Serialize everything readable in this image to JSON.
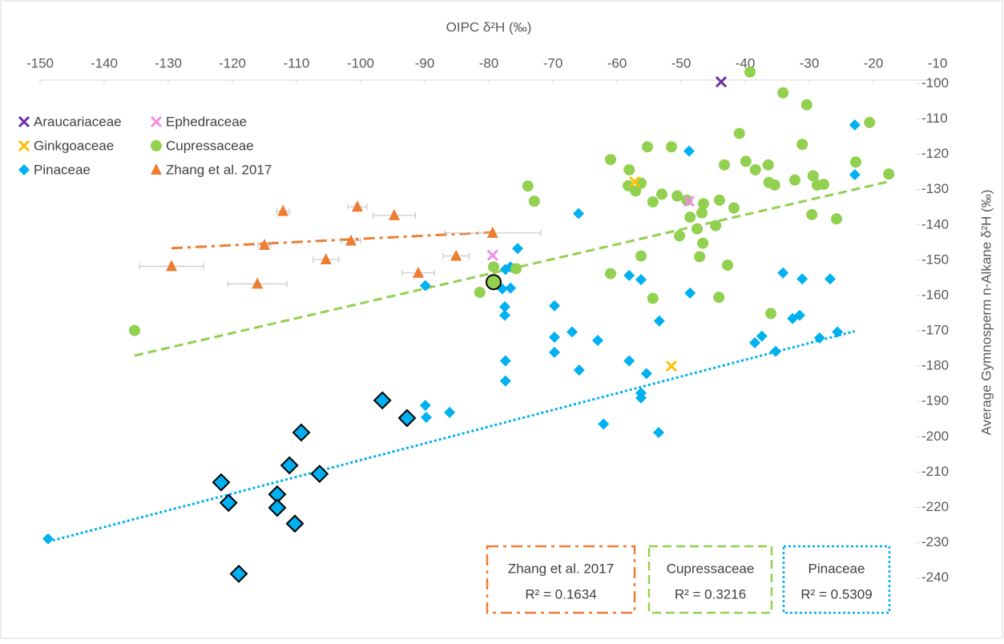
{
  "chart_data": {
    "type": "scatter",
    "x_label": "OIPC δ²H (‰)",
    "y_label": "Average Gymnosperm n-Alkane δ²H (‰)",
    "xlim": [
      -150,
      -10
    ],
    "ylim": [
      -255.5,
      -99
    ],
    "xticks": [
      -150,
      -140,
      -130,
      -120,
      -110,
      -100,
      -90,
      -80,
      -70,
      -60,
      -50,
      -40,
      -30,
      -20,
      -10
    ],
    "yticks": [
      -100,
      -110,
      -120,
      -130,
      -140,
      -150,
      -160,
      -170,
      -180,
      -190,
      -200,
      -210,
      -220,
      -230,
      -240
    ],
    "legend": "top-left",
    "series": [
      {
        "name": "Araucariaceae",
        "color": "#7030a0",
        "marker": "x",
        "x": [
          -43.75
        ],
        "y": [
          -99.5
        ]
      },
      {
        "name": "Ephedraceae",
        "color": "#f28ce6",
        "marker": "x",
        "x": [
          -48.75,
          -79.4
        ],
        "y": [
          -133.3,
          -148.6
        ]
      },
      {
        "name": "Ginkgoaceae",
        "color": "#ffc000",
        "marker": "x",
        "x": [
          -57.25,
          -51.5
        ],
        "y": [
          -127.8,
          -180.0
        ]
      },
      {
        "name": "Cupressaceae",
        "color": "#92d050",
        "marker": "circle",
        "x": [
          -135.25,
          -39.25,
          -34.1,
          -30.4,
          -40.9,
          -31.1,
          -20.6,
          -17.6,
          -22.75,
          -39.9,
          -38.4,
          -36.4,
          -55.25,
          -51.5,
          -61,
          -73.9,
          -72.9,
          -58.1,
          -56.25,
          -58.25,
          -57.1,
          -53,
          -54.4,
          -50.6,
          -49.1,
          -46.5,
          -44,
          -43.25,
          -36.3,
          -41.75,
          -46.75,
          -48.6,
          -47.5,
          -50.25,
          -46.6,
          -44.6,
          -35.4,
          -32.25,
          -29.4,
          -28.75,
          -27.75,
          -29.6,
          -25.75,
          -42.75,
          -44.1,
          -47.1,
          -56.25,
          -54.4,
          -61,
          -75.75,
          -79.25,
          -81.4,
          -36,
          -79.25
        ],
        "y": [
          -169.9,
          -96.7,
          -102.6,
          -106.0,
          -114.1,
          -117.2,
          -111.0,
          -125.6,
          -122.2,
          -122.0,
          -124.4,
          -123.0,
          -117.9,
          -117.9,
          -121.5,
          -129.0,
          -133.3,
          -124.4,
          -128.2,
          -128.9,
          -130.4,
          -131.3,
          -133.5,
          -131.8,
          -133.0,
          -134.0,
          -133.0,
          -123.0,
          -128.0,
          -135.2,
          -136.6,
          -137.8,
          -141.1,
          -143.1,
          -145.2,
          -140.2,
          -128.7,
          -127.3,
          -126.1,
          -128.7,
          -128.5,
          -137.1,
          -138.3,
          -151.4,
          -160.5,
          -149.0,
          -148.8,
          -160.8,
          -153.8,
          -152.4,
          -151.9,
          -159.1,
          -165.1,
          -156.2
        ],
        "outlined": [
          53
        ]
      },
      {
        "name": "Pinaceae",
        "color": "#00b0f0",
        "marker": "diamond",
        "x": [
          -148.75,
          -22.9,
          -22.9,
          -48.75,
          -66,
          -75.5,
          -76.6,
          -77.4,
          -76.6,
          -77.9,
          -89.9,
          -77.5,
          -77.5,
          -69.75,
          -69.75,
          -69.75,
          -67,
          -63,
          -65.9,
          -77.4,
          -77.4,
          -58.1,
          -56.25,
          -53.4,
          -48.6,
          -58.1,
          -55.4,
          -56.25,
          -56.25,
          -62.1,
          -53.5,
          -89.9,
          -89.75,
          -86.1,
          -34.1,
          -31.1,
          -32.6,
          -31.5,
          -38.5,
          -37.4,
          -28.4,
          -25.6,
          -26.75,
          -35.25,
          -109.25,
          -96.6,
          -92.75,
          -111.1,
          -106.4,
          -121.75,
          -120.6,
          -113,
          -113,
          -110.25,
          -119
        ],
        "y": [
          -228.9,
          -111.7,
          -125.8,
          -119.1,
          -136.8,
          -146.7,
          -151.9,
          -152.6,
          -157.9,
          -158.1,
          -157.2,
          -163.2,
          -165.6,
          -162.9,
          -171.8,
          -176.1,
          -170.3,
          -172.7,
          -181.1,
          -178.5,
          -184.2,
          -154.3,
          -155.5,
          -167.2,
          -159.3,
          -178.5,
          -182.1,
          -187.6,
          -189.0,
          -196.4,
          -198.8,
          -191.1,
          -194.5,
          -193.1,
          -153.6,
          -155.3,
          -166.5,
          -165.6,
          -173.4,
          -171.5,
          -172.0,
          -170.3,
          -155.3,
          -175.8,
          -198.8,
          -189.7,
          -194.7,
          -208.1,
          -210.5,
          -212.9,
          -218.7,
          -216.3,
          -220.1,
          -224.6,
          -238.8
        ],
        "outlined": [
          44,
          45,
          46,
          47,
          48,
          49,
          50,
          51,
          52,
          53,
          54
        ]
      },
      {
        "name": "Zhang et al. 2017",
        "color": "#ed7d31",
        "marker": "triangle",
        "x": [
          -129.5,
          -116.1,
          -115,
          -112.1,
          -105.4,
          -101.5,
          -100.5,
          -94.75,
          -91,
          -85.1,
          -79.4
        ],
        "y": [
          -151.7,
          -156.7,
          -145.7,
          -136.1,
          -149.8,
          -144.5,
          -134.9,
          -137.3,
          -153.6,
          -148.8,
          -142.3
        ],
        "xerr": [
          5,
          4.6,
          1,
          1,
          2,
          1.5,
          1.5,
          3.3,
          2.5,
          2,
          7.5
        ]
      }
    ],
    "trendlines": [
      {
        "name": "Zhang et al. 2017",
        "r2_label": "R² = 0.1634",
        "color": "#ed7d31",
        "dash": "dashdot",
        "x": [
          -129.5,
          -79.4
        ],
        "y": [
          -146.6,
          -142.1
        ]
      },
      {
        "name": "Cupressaceae",
        "r2_label": "R² = 0.3216",
        "color": "#92d050",
        "dash": "dash",
        "x": [
          -135.25,
          -17.75
        ],
        "y": [
          -177.0,
          -127.8
        ]
      },
      {
        "name": "Pinaceae",
        "r2_label": "R² = 0.5309",
        "color": "#00b0f0",
        "dash": "dot",
        "x": [
          -148.75,
          -22.9
        ],
        "y": [
          -229.7,
          -170.1
        ]
      }
    ]
  }
}
